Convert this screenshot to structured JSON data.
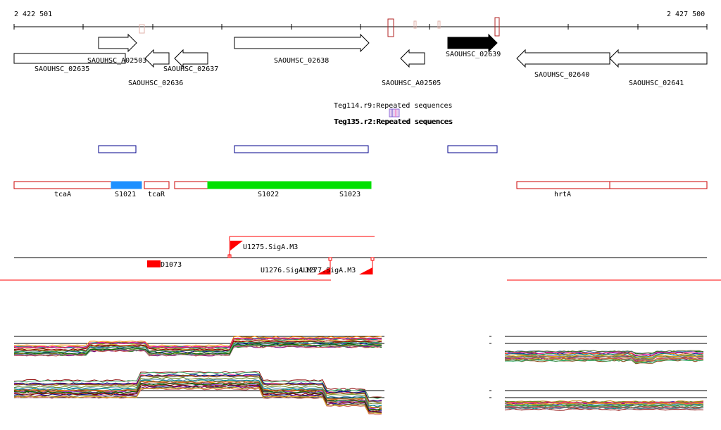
{
  "coordinates": {
    "start": "2 422 501",
    "end": "2 427 500"
  },
  "genes": {
    "g02635": "SAOUHSC_02635",
    "g02636": "SAOUHSC_02636",
    "gA02503": "SAOUHSC_A02503",
    "g02637": "SAOUHSC_02637",
    "g02638": "SAOUHSC_02638",
    "gA02505": "SAOUHSC_A02505",
    "g02639": "SAOUHSC_02639",
    "g02640": "SAOUHSC_02640",
    "g02641": "SAOUHSC_02641"
  },
  "repeats": {
    "teg114": "Teg114.r9:Repeated sequences",
    "teg136": "Teg135.r2:Repeated sequences"
  },
  "segments": {
    "tcaA": "tcaA",
    "s1021": "S1021",
    "tcaR": "tcaR",
    "s1022": "S1022",
    "s1023": "S1023",
    "hrtA": "hrtA"
  },
  "promoters": {
    "u1275": "U1275.SigA.M3",
    "u1276": "U1276.SigA.M3",
    "u1277": "U1277.SigA.M3",
    "d1073": "D1073"
  },
  "colors": {
    "segment_outline": "#cc0000",
    "segment_blue": "#1e90ff",
    "segment_green": "#00e000",
    "utr_outline": "#00008b",
    "promoter_red": "#ff0000",
    "selected_gene": "#000000"
  }
}
